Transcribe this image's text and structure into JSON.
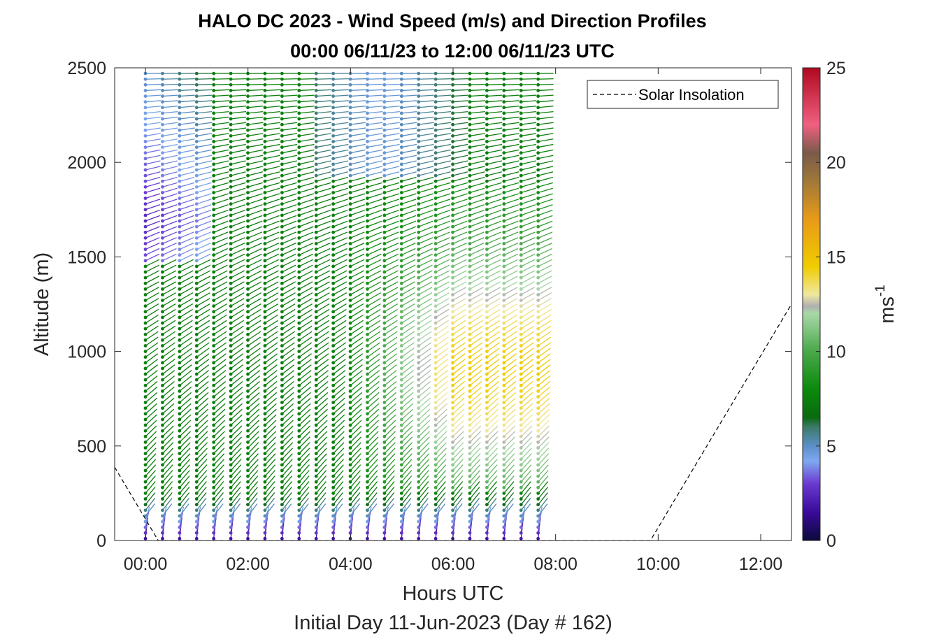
{
  "chart_data": {
    "type": "wind-barb-profile",
    "title": "HALO DC 2023 - Wind Speed (m/s) and Direction Profiles",
    "subtitle": "00:00 06/11/23 to 12:00 06/11/23  UTC",
    "xlabel": "Hours UTC",
    "xlabel2": "Initial Day 11-Jun-2023 (Day # 162)",
    "ylabel": "Altitude (m)",
    "xlim_hours": [
      -0.6,
      12.6
    ],
    "ylim": [
      0,
      2500
    ],
    "x_ticks": [
      {
        "value": 0,
        "label": "00:00"
      },
      {
        "value": 2,
        "label": "02:00"
      },
      {
        "value": 4,
        "label": "04:00"
      },
      {
        "value": 6,
        "label": "06:00"
      },
      {
        "value": 8,
        "label": "08:00"
      },
      {
        "value": 10,
        "label": "10:00"
      },
      {
        "value": 12,
        "label": "12:00"
      }
    ],
    "y_ticks": [
      {
        "value": 0,
        "label": "0"
      },
      {
        "value": 500,
        "label": "500"
      },
      {
        "value": 1000,
        "label": "1000"
      },
      {
        "value": 1500,
        "label": "1500"
      },
      {
        "value": 2000,
        "label": "2000"
      },
      {
        "value": 2500,
        "label": "2500"
      }
    ],
    "profile_start_hour": 0.0,
    "profile_interval_hours": 0.333,
    "profile_count": 24,
    "altitude_levels_m": {
      "min": 10,
      "max": 2490,
      "step": 30
    },
    "colorbar": {
      "label": "ms",
      "label_superscript": "-1",
      "range": [
        0,
        25
      ],
      "ticks": [
        {
          "value": 0,
          "label": "0"
        },
        {
          "value": 5,
          "label": "5"
        },
        {
          "value": 10,
          "label": "10"
        },
        {
          "value": 15,
          "label": "15"
        },
        {
          "value": 20,
          "label": "20"
        },
        {
          "value": 25,
          "label": "25"
        }
      ],
      "stops": [
        [
          0,
          "#0a0a3a"
        ],
        [
          1.5,
          "#3a0a9a"
        ],
        [
          3,
          "#6a3ad0"
        ],
        [
          4.2,
          "#7fa8f0"
        ],
        [
          5,
          "#5b8fc8"
        ],
        [
          6,
          "#3c7a6a"
        ],
        [
          6.5,
          "#0a6a10"
        ],
        [
          8,
          "#0b8a0b"
        ],
        [
          10,
          "#4aa84a"
        ],
        [
          12,
          "#a8d8a8"
        ],
        [
          12.4,
          "#b0b0b0"
        ],
        [
          13,
          "#f0e8a0"
        ],
        [
          14.5,
          "#f0cc00"
        ],
        [
          17,
          "#e89a18"
        ],
        [
          19,
          "#a07838"
        ],
        [
          20.5,
          "#7a5a4a"
        ],
        [
          22,
          "#f06080"
        ],
        [
          25,
          "#b00820"
        ]
      ]
    },
    "legend": {
      "entries": [
        {
          "label": "Solar Insolation",
          "style": "dashed",
          "color": "#000000"
        }
      ],
      "placement": "top-right"
    },
    "solar_insolation_line": {
      "x_hours": [
        -0.6,
        0.25,
        9.85,
        12.6
      ],
      "relative_level": [
        0.155,
        0.0,
        0.0,
        0.5
      ]
    },
    "wind_field_description": "Speeds ~1-4 m/s near surface, 6-9 m/s through most of the column, 12-16 m/s between 300-1600 m after 04:30 UTC; winds from west-southwest rotating westerly aloft.",
    "grid": false
  }
}
